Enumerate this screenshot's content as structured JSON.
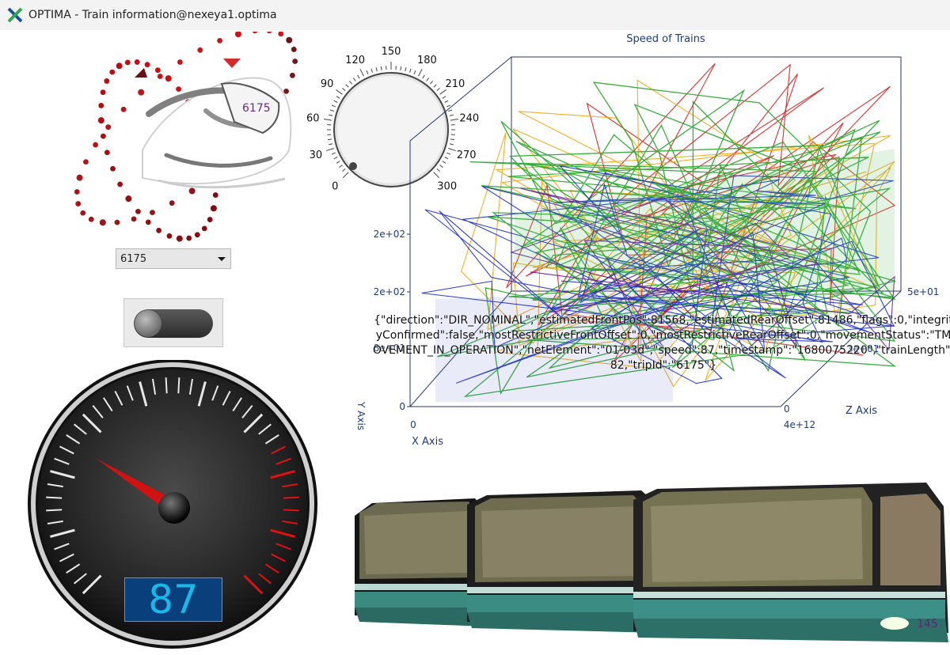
{
  "window": {
    "title": "OPTIMA - Train information@nexeya1.optima"
  },
  "train_animation": {
    "badge": "6175"
  },
  "train_selector": {
    "value": "6175"
  },
  "toggle": {
    "state": "off"
  },
  "knob": {
    "ticks": [
      "0",
      "30",
      "60",
      "90",
      "120",
      "150",
      "180",
      "210",
      "240",
      "270",
      "300"
    ]
  },
  "speedometer": {
    "value": "87"
  },
  "chart_data": {
    "type": "line",
    "title": "Speed of Trains",
    "xlabel": "X Axis",
    "ylabel": "Y Axis",
    "zlabel": "Z Axis",
    "x_ticks": [
      "0",
      "4e+12"
    ],
    "y_ticks": [
      "0",
      "8e+01",
      "2e+02",
      "2e+02"
    ],
    "z_ticks": [
      "0",
      "3e+01",
      "5e+01"
    ],
    "series": [
      {
        "color": "#d91a1a"
      },
      {
        "color": "#f2a60d"
      },
      {
        "color": "#22a52a"
      },
      {
        "color": "#1a2ec8"
      },
      {
        "color": "#6a1aa0"
      }
    ]
  },
  "status_message": "{\"direction\":\"DIR_NOMINAL\",\"estimatedFrontPos\":81568,\"estimatedRearOffset\":81486,\"flags\":0,\"integrityConfirmed\":false,\"mostRestrictiveFrontOffset\":0,\"mostRestrictiveRearOffset\":0,\"movementStatus\":\"TMOVEMENT_IN_OPERATION\",\"netElement\":\"01-03d\",\"speed\":87,\"timestamp\":\"1680075220\",\"trainLength\":82,\"tripId\":\"6175\"}",
  "train_model": {
    "number": "145"
  },
  "colors": {
    "accent_red": "#c0161c",
    "lcd_bg": "#093f7a",
    "lcd_text": "#19b8ec",
    "train_body": "#2e6e66"
  }
}
